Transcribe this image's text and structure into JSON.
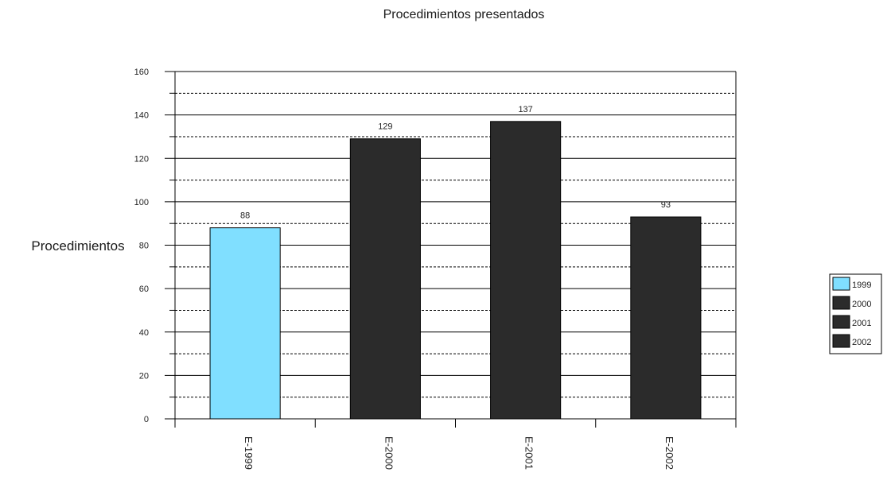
{
  "chart_data": {
    "type": "bar",
    "title": "Procedimientos presentados",
    "xlabel": "",
    "ylabel": "Procedimientos",
    "categories": [
      "E-1999",
      "E-2000",
      "E-2001",
      "E-2002"
    ],
    "values": [
      88,
      129,
      137,
      93
    ],
    "data_labels": [
      "88",
      "129",
      "137",
      "93"
    ],
    "ylim": [
      0,
      160
    ],
    "yticks": [
      0,
      20,
      40,
      60,
      80,
      100,
      120,
      140,
      160
    ],
    "grid": true,
    "legend": {
      "placement": "right",
      "entries": [
        {
          "label": "1999",
          "color": "#80dfff"
        },
        {
          "label": "2000",
          "color": "#2b2b2b"
        },
        {
          "label": "2001",
          "color": "#2b2b2b"
        },
        {
          "label": "2002",
          "color": "#2b2b2b"
        }
      ]
    },
    "bar_colors": [
      "#80dfff",
      "#2b2b2b",
      "#2b2b2b",
      "#2b2b2b"
    ]
  }
}
